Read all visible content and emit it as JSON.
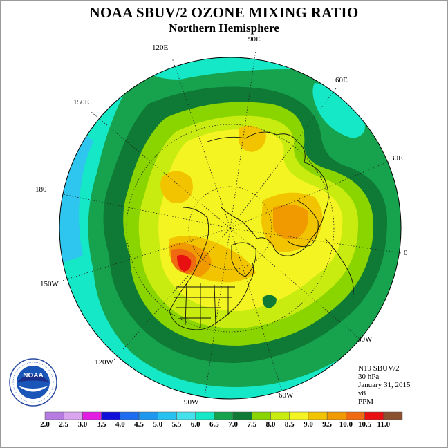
{
  "title": "NOAA SBUV/2 OZONE MIXING RATIO",
  "subtitle": "Northern Hemisphere",
  "longitude_labels": [
    "120E",
    "90E",
    "60E",
    "150E",
    "30E",
    "180",
    "0",
    "150W",
    "30W",
    "120W",
    "60W",
    "90W"
  ],
  "info": {
    "instrument": "N19 SBUV/2",
    "level": "30 hPa",
    "date": "January 31, 2015",
    "version": "v8",
    "units": "PPM"
  },
  "colorbar": {
    "ticks": [
      "2.0",
      "2.5",
      "3.0",
      "3.5",
      "4.0",
      "4.5",
      "5.0",
      "5.5",
      "6.0",
      "6.5",
      "7.0",
      "7.5",
      "8.0",
      "8.5",
      "9.0",
      "9.5",
      "10.0",
      "10.5",
      "11.0"
    ],
    "colors": [
      "#b57be0",
      "#d9a5ee",
      "#e21ee2",
      "#1010d8",
      "#1e6cf0",
      "#1e98ee",
      "#29c2f0",
      "#44e0ec",
      "#15e8c6",
      "#17a34d",
      "#0e7a35",
      "#8ad400",
      "#c8ec10",
      "#f4f422",
      "#f2c400",
      "#f09a00",
      "#ef6a10",
      "#e81010",
      "#8a5030"
    ]
  },
  "map": {
    "projection": "north polar stereographic",
    "field": "ozone mixing ratio (ppm)",
    "colors": {
      "c55": "#44e0ec",
      "c60": "#15e8c6",
      "c65": "#17a34d",
      "c70": "#0e7a35",
      "c75": "#8ad400",
      "c80": "#c8ec10",
      "c85": "#f4f422",
      "c90": "#f2c400",
      "c95": "#f09a00",
      "c100": "#ef6a10",
      "c105": "#e81010"
    }
  },
  "logo": {
    "text": "NOAA"
  }
}
